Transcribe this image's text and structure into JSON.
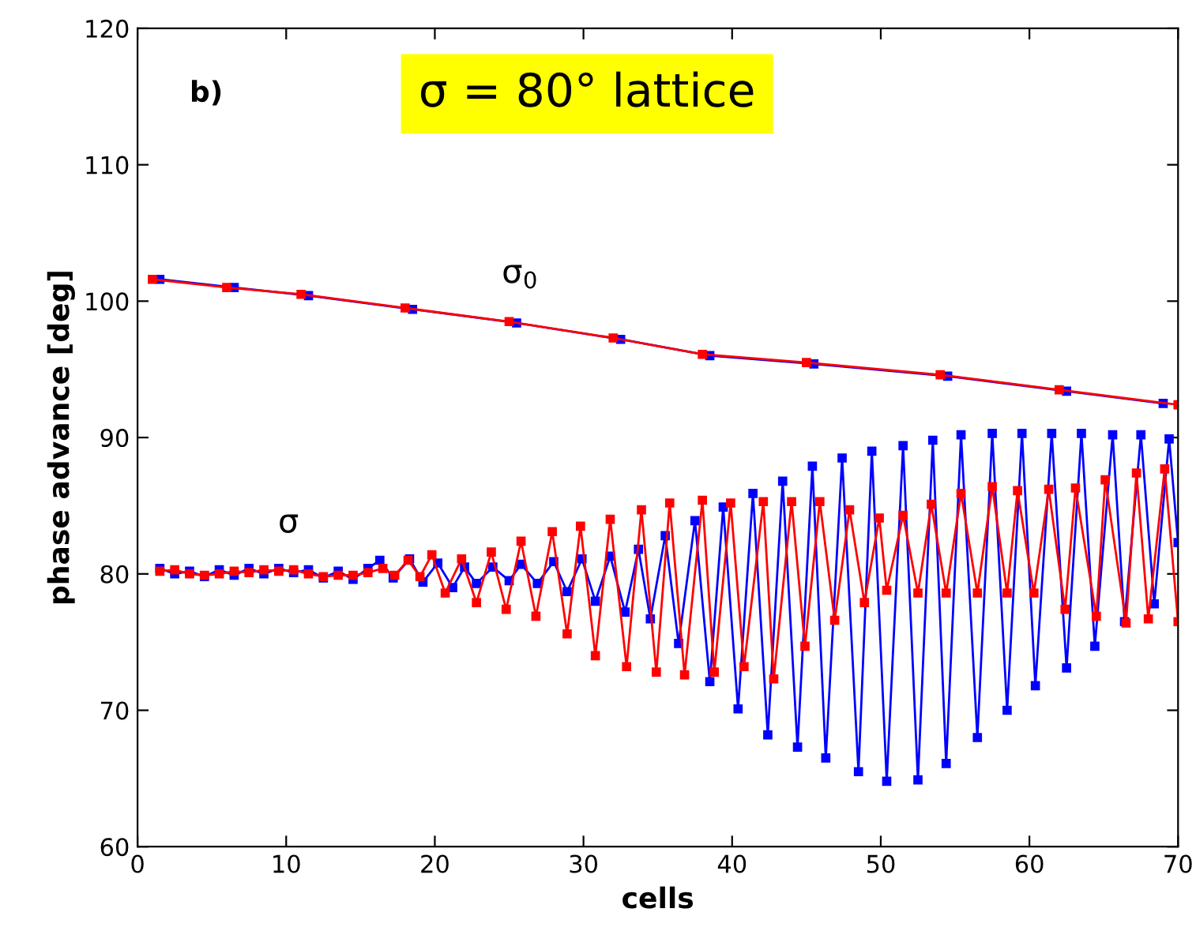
{
  "chart_data": {
    "type": "line",
    "title": "σ = 80° lattice",
    "xlabel": "cells",
    "ylabel": "phase advance [deg]",
    "xlim": [
      0,
      70
    ],
    "ylim": [
      60,
      120
    ],
    "xticks": [
      0,
      10,
      20,
      30,
      40,
      50,
      60,
      70
    ],
    "yticks": [
      60,
      70,
      80,
      90,
      100,
      110,
      120
    ],
    "marker": "square",
    "line_style": "solid",
    "annotations": [
      "b)",
      "σ$_{0}$",
      "σ"
    ],
    "series": [
      {
        "color": "#0000ff",
        "x": [
          1.5,
          6.5,
          11.5,
          18.5,
          25.5,
          32.5,
          38.5,
          45.5,
          54.5,
          62.5,
          69
        ],
        "values": [
          101.6,
          101.0,
          100.4,
          99.4,
          98.4,
          97.2,
          96.0,
          95.4,
          94.5,
          93.4,
          92.5
        ]
      },
      {
        "color": "#ff0000",
        "x": [
          1,
          6,
          11,
          18,
          25,
          32,
          38,
          45,
          54,
          62,
          70
        ],
        "values": [
          101.6,
          101.0,
          100.5,
          99.5,
          98.5,
          97.3,
          96.1,
          95.5,
          94.6,
          93.5,
          92.4
        ]
      },
      {
        "color": "#0000ff",
        "x": [
          1.5,
          2.5,
          3.5,
          4.5,
          5.5,
          6.5,
          7.5,
          8.5,
          9.5,
          10.5,
          11.5,
          12.5,
          13.5,
          14.5,
          15.5,
          16.3,
          17.2,
          18.3,
          19.2,
          20.2,
          21.2,
          22.0,
          22.8,
          23.9,
          25.0,
          25.8,
          26.9,
          28.0,
          28.9,
          29.9,
          30.8,
          31.8,
          32.8,
          33.7,
          34.5,
          35.5,
          36.4,
          37.5,
          38.5,
          39.4,
          40.4,
          41.4,
          42.4,
          43.4,
          44.4,
          45.4,
          46.3,
          47.4,
          48.5,
          49.4,
          50.4,
          51.5,
          52.5,
          53.5,
          54.4,
          55.4,
          56.5,
          57.5,
          58.5,
          59.5,
          60.4,
          61.5,
          62.5,
          63.5,
          64.4,
          65.6,
          66.4,
          67.5,
          68.4,
          69.4,
          70
        ],
        "values": [
          80.4,
          80.0,
          80.2,
          79.8,
          80.3,
          79.9,
          80.4,
          80.0,
          80.4,
          80.1,
          80.3,
          79.7,
          80.2,
          79.6,
          80.4,
          81.0,
          79.7,
          81.1,
          79.4,
          80.8,
          79.0,
          80.5,
          79.3,
          80.5,
          79.5,
          80.7,
          79.3,
          80.9,
          78.7,
          81.1,
          78.0,
          81.3,
          77.2,
          81.8,
          76.7,
          82.8,
          74.9,
          83.9,
          72.1,
          84.9,
          70.1,
          85.9,
          68.2,
          86.8,
          67.3,
          87.9,
          66.5,
          88.5,
          65.5,
          89.0,
          64.8,
          89.4,
          64.9,
          89.8,
          66.1,
          90.2,
          68.0,
          90.3,
          70.0,
          90.3,
          71.8,
          90.3,
          73.1,
          90.3,
          74.7,
          90.2,
          76.5,
          90.2,
          77.8,
          89.9,
          82.3
        ]
      },
      {
        "color": "#ff0000",
        "x": [
          1.5,
          2.5,
          3.5,
          4.5,
          5.5,
          6.5,
          7.5,
          8.5,
          9.5,
          10.5,
          11.5,
          12.5,
          13.5,
          14.5,
          15.5,
          16.5,
          17.3,
          18.2,
          19.0,
          19.8,
          20.7,
          21.8,
          22.8,
          23.8,
          24.8,
          25.8,
          26.8,
          27.9,
          28.9,
          29.8,
          30.8,
          31.8,
          32.9,
          33.9,
          34.9,
          35.8,
          36.8,
          38.0,
          38.8,
          39.9,
          40.8,
          42.1,
          42.8,
          44.0,
          44.9,
          45.9,
          46.9,
          47.9,
          48.9,
          49.9,
          50.4,
          51.5,
          52.5,
          53.4,
          54.4,
          55.4,
          56.5,
          57.5,
          58.5,
          59.2,
          60.3,
          61.3,
          62.4,
          63.1,
          64.5,
          65.1,
          66.5,
          67.2,
          68.0,
          69.1,
          70
        ],
        "values": [
          80.2,
          80.3,
          80.0,
          79.9,
          80.0,
          80.2,
          80.1,
          80.3,
          80.2,
          80.3,
          80.0,
          79.8,
          79.9,
          79.9,
          80.1,
          80.4,
          79.9,
          81.0,
          79.8,
          81.4,
          78.6,
          81.1,
          77.9,
          81.6,
          77.4,
          82.4,
          76.9,
          83.1,
          75.6,
          83.5,
          74.0,
          84.0,
          73.2,
          84.7,
          72.8,
          85.2,
          72.6,
          85.4,
          72.8,
          85.2,
          73.2,
          85.3,
          72.3,
          85.3,
          74.7,
          85.3,
          76.6,
          84.7,
          77.9,
          84.1,
          78.8,
          84.3,
          78.6,
          85.1,
          78.6,
          85.9,
          78.6,
          86.4,
          78.6,
          86.1,
          78.6,
          86.2,
          77.4,
          86.3,
          76.9,
          86.9,
          76.4,
          87.4,
          76.7,
          87.7,
          76.5
        ]
      }
    ]
  }
}
